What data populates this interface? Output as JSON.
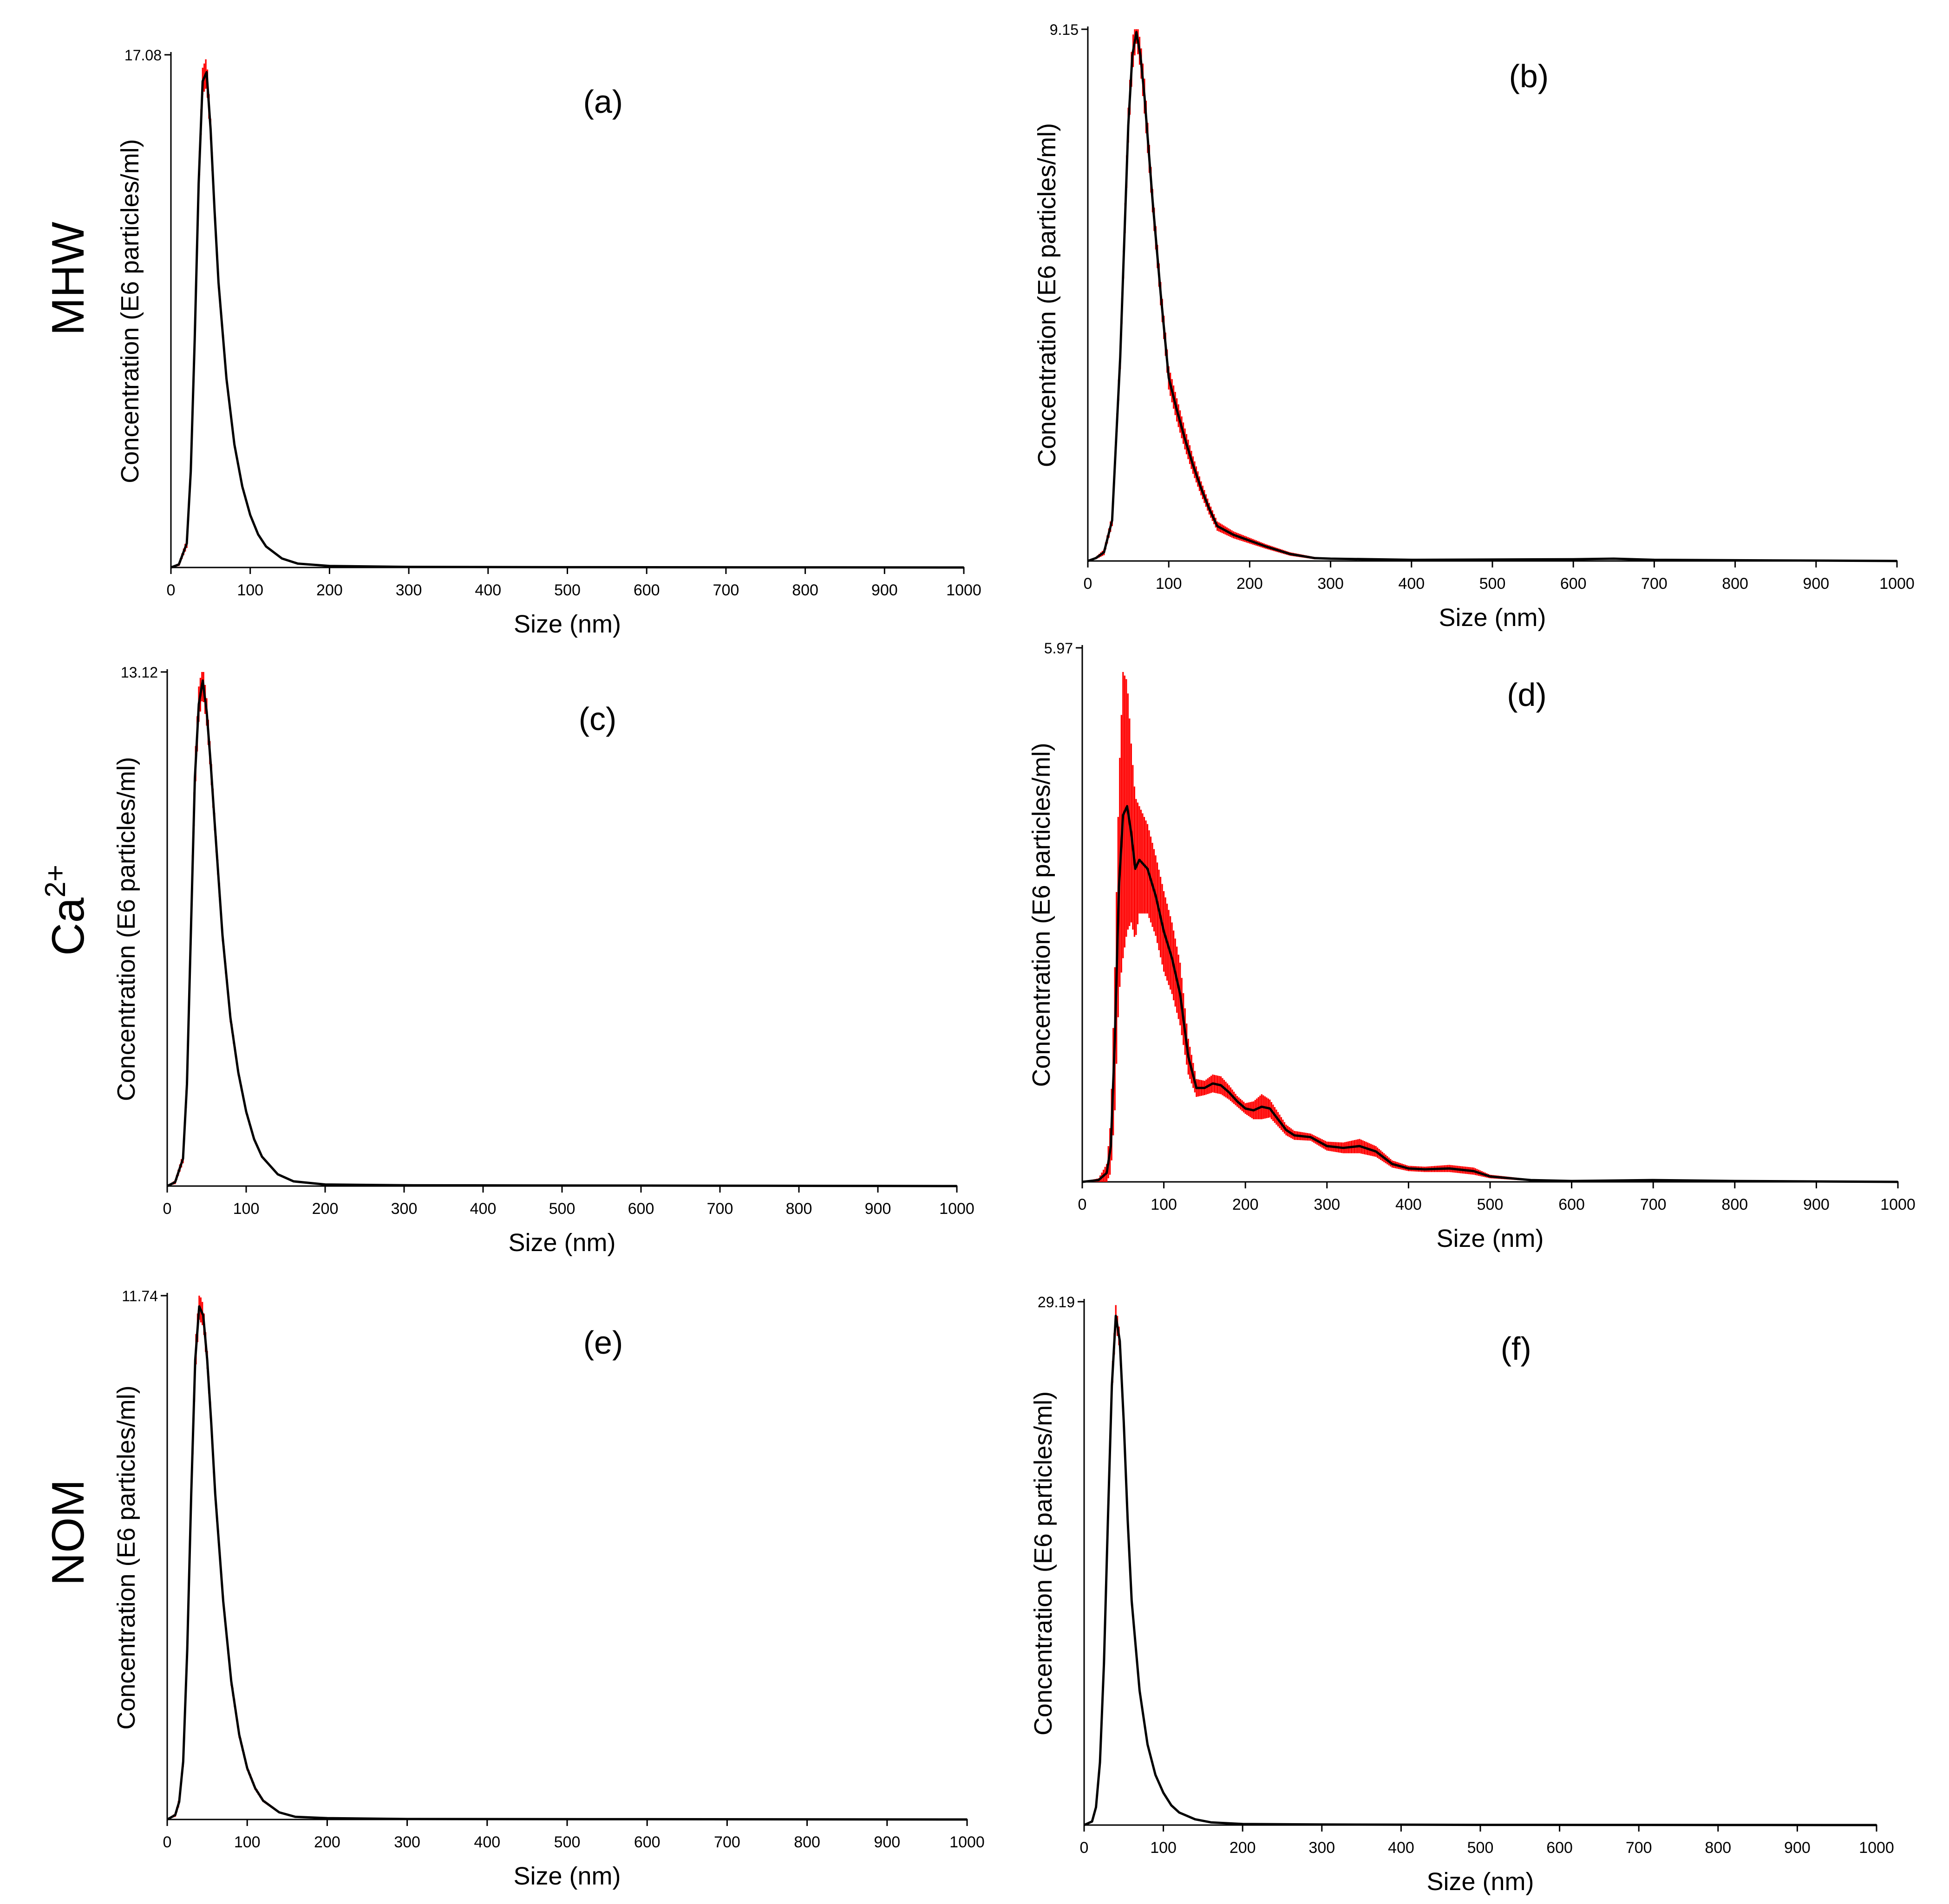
{
  "figure": {
    "row_labels": [
      {
        "text": "MHW",
        "sup": ""
      },
      {
        "text": "Ca",
        "sup": "2+"
      },
      {
        "text": "NOM",
        "sup": ""
      }
    ]
  },
  "colors": {
    "mean_line": "#000000",
    "error_band": "#ff0000",
    "axis": "#000000"
  },
  "chart_data": [
    {
      "type": "line",
      "panel": "(a)",
      "xlabel": "Size (nm)",
      "ylabel": "Concentration (E6 particles/ml)",
      "xlim": [
        0,
        1000
      ],
      "ylim": [
        0,
        17.08
      ],
      "ymax_label": "17.08",
      "xticks": [
        "0",
        "100",
        "200",
        "300",
        "400",
        "500",
        "600",
        "700",
        "800",
        "900",
        "1000"
      ],
      "series": [
        {
          "name": "mean",
          "x": [
            0,
            10,
            20,
            25,
            30,
            35,
            40,
            45,
            50,
            55,
            60,
            70,
            80,
            90,
            100,
            110,
            120,
            140,
            160,
            200,
            300,
            500,
            1000
          ],
          "y": [
            0,
            0.1,
            0.8,
            3.2,
            7.6,
            12.8,
            16.2,
            16.5,
            14.6,
            11.9,
            9.5,
            6.3,
            4.1,
            2.7,
            1.75,
            1.1,
            0.7,
            0.3,
            0.13,
            0.05,
            0.02,
            0.01,
            0
          ]
        }
      ],
      "error_width": [
        0,
        0.05,
        0.15,
        0.25,
        0.35,
        0.4,
        0.45,
        0.5,
        0.35,
        0.25,
        0.2,
        0.15,
        0.1,
        0.08,
        0.05,
        0.04,
        0.03,
        0.02,
        0.01,
        0,
        0,
        0,
        0
      ]
    },
    {
      "type": "line",
      "panel": "(b)",
      "xlabel": "Size (nm)",
      "ylabel": "Concentration (E6 particles/ml)",
      "xlim": [
        0,
        1000
      ],
      "ylim": [
        0,
        9.15
      ],
      "ymax_label": "9.15",
      "xticks": [
        "0",
        "100",
        "200",
        "300",
        "400",
        "500",
        "600",
        "700",
        "800",
        "900",
        "1000"
      ],
      "series": [
        {
          "name": "mean",
          "x": [
            0,
            10,
            20,
            30,
            40,
            50,
            55,
            60,
            65,
            70,
            80,
            90,
            100,
            110,
            120,
            130,
            140,
            150,
            160,
            180,
            200,
            220,
            250,
            280,
            300,
            400,
            600,
            650,
            700,
            1000
          ],
          "y": [
            0,
            0.05,
            0.15,
            0.7,
            3.5,
            7.5,
            8.7,
            9.1,
            8.7,
            8.0,
            6.2,
            4.6,
            3.15,
            2.6,
            2.1,
            1.65,
            1.25,
            0.9,
            0.6,
            0.45,
            0.35,
            0.25,
            0.12,
            0.05,
            0.04,
            0.02,
            0.03,
            0.04,
            0.02,
            0
          ]
        }
      ],
      "error_width": [
        0,
        0.02,
        0.05,
        0.1,
        0.2,
        0.3,
        0.3,
        0.2,
        0.25,
        0.3,
        0.2,
        0.2,
        0.2,
        0.2,
        0.18,
        0.15,
        0.12,
        0.1,
        0.08,
        0.06,
        0.05,
        0.04,
        0.03,
        0.02,
        0.01,
        0.01,
        0.01,
        0.01,
        0,
        0
      ]
    },
    {
      "type": "line",
      "panel": "(c)",
      "xlabel": "Size (nm)",
      "ylabel": "Concentration (E6 particles/ml)",
      "xlim": [
        0,
        1000
      ],
      "ylim": [
        0,
        13.12
      ],
      "ymax_label": "13.12",
      "xticks": [
        "0",
        "100",
        "200",
        "300",
        "400",
        "500",
        "600",
        "700",
        "800",
        "900",
        "1000"
      ],
      "series": [
        {
          "name": "mean",
          "x": [
            0,
            10,
            20,
            25,
            30,
            35,
            40,
            45,
            50,
            55,
            60,
            70,
            80,
            90,
            100,
            110,
            120,
            140,
            160,
            200,
            300,
            1000
          ],
          "y": [
            0,
            0.1,
            0.7,
            2.6,
            6.5,
            10.4,
            12.3,
            12.9,
            12.1,
            10.8,
            9.3,
            6.4,
            4.3,
            2.9,
            1.9,
            1.2,
            0.75,
            0.3,
            0.12,
            0.04,
            0.02,
            0
          ]
        }
      ],
      "error_width": [
        0,
        0.05,
        0.12,
        0.25,
        0.35,
        0.45,
        0.45,
        0.4,
        0.35,
        0.28,
        0.22,
        0.15,
        0.12,
        0.08,
        0.06,
        0.04,
        0.03,
        0.02,
        0.01,
        0,
        0,
        0
      ]
    },
    {
      "type": "line",
      "panel": "(d)",
      "xlabel": "Size (nm)",
      "ylabel": "Concentration (E6 particles/ml)",
      "xlim": [
        0,
        1000
      ],
      "ylim": [
        0,
        5.97
      ],
      "ymax_label": "5.97",
      "xticks": [
        "0",
        "100",
        "200",
        "300",
        "400",
        "500",
        "600",
        "700",
        "800",
        "900",
        "1000"
      ],
      "series": [
        {
          "name": "mean",
          "x": [
            0,
            20,
            30,
            35,
            40,
            45,
            50,
            55,
            60,
            65,
            70,
            80,
            90,
            100,
            110,
            120,
            130,
            140,
            150,
            160,
            170,
            180,
            190,
            200,
            210,
            220,
            230,
            240,
            250,
            260,
            280,
            300,
            320,
            340,
            360,
            380,
            400,
            420,
            450,
            480,
            500,
            550,
            600,
            700,
            800,
            1000
          ],
          "y": [
            0,
            0.02,
            0.1,
            0.4,
            1.6,
            3.3,
            4.1,
            4.2,
            3.9,
            3.5,
            3.6,
            3.5,
            3.2,
            2.8,
            2.5,
            2.1,
            1.4,
            1.05,
            1.05,
            1.1,
            1.08,
            1.0,
            0.9,
            0.82,
            0.8,
            0.84,
            0.82,
            0.7,
            0.58,
            0.52,
            0.5,
            0.4,
            0.38,
            0.4,
            0.34,
            0.2,
            0.15,
            0.14,
            0.15,
            0.12,
            0.06,
            0.02,
            0.01,
            0.02,
            0.01,
            0
          ]
        }
      ],
      "error_width": [
        0,
        0.02,
        0.1,
        0.3,
        0.8,
        1.2,
        1.6,
        1.4,
        1.0,
        0.8,
        0.6,
        0.5,
        0.45,
        0.45,
        0.4,
        0.35,
        0.2,
        0.1,
        0.08,
        0.1,
        0.1,
        0.08,
        0.06,
        0.06,
        0.1,
        0.14,
        0.1,
        0.08,
        0.06,
        0.05,
        0.04,
        0.05,
        0.06,
        0.08,
        0.06,
        0.04,
        0.03,
        0.03,
        0.04,
        0.04,
        0.02,
        0.01,
        0.01,
        0.01,
        0,
        0
      ]
    },
    {
      "type": "line",
      "panel": "(e)",
      "xlabel": "Size (nm)",
      "ylabel": "Concentration (E6 particles/ml)",
      "xlim": [
        0,
        1000
      ],
      "ylim": [
        0,
        11.74
      ],
      "ymax_label": "11.74",
      "xticks": [
        "0",
        "100",
        "200",
        "300",
        "400",
        "500",
        "600",
        "700",
        "800",
        "900",
        "1000"
      ],
      "series": [
        {
          "name": "mean",
          "x": [
            0,
            10,
            15,
            20,
            25,
            30,
            35,
            40,
            45,
            50,
            55,
            60,
            70,
            80,
            90,
            100,
            110,
            120,
            140,
            160,
            200,
            300,
            1000
          ],
          "y": [
            0,
            0.1,
            0.4,
            1.3,
            3.8,
            7.3,
            10.3,
            11.5,
            11.3,
            10.3,
            8.9,
            7.3,
            4.9,
            3.1,
            1.9,
            1.15,
            0.7,
            0.42,
            0.16,
            0.06,
            0.03,
            0.01,
            0
          ]
        }
      ],
      "error_width": [
        0,
        0.04,
        0.08,
        0.12,
        0.2,
        0.3,
        0.35,
        0.3,
        0.25,
        0.2,
        0.18,
        0.15,
        0.12,
        0.1,
        0.07,
        0.05,
        0.04,
        0.03,
        0.02,
        0.01,
        0,
        0,
        0
      ]
    },
    {
      "type": "line",
      "panel": "(f)",
      "xlabel": "Size (nm)",
      "ylabel": "Concentration (E6 particles/ml)",
      "xlim": [
        0,
        1000
      ],
      "ylim": [
        0,
        29.19
      ],
      "ymax_label": "29.19",
      "xticks": [
        "0",
        "100",
        "200",
        "300",
        "400",
        "500",
        "600",
        "700",
        "800",
        "900",
        "1000"
      ],
      "series": [
        {
          "name": "mean",
          "x": [
            0,
            10,
            15,
            20,
            25,
            30,
            35,
            40,
            45,
            50,
            55,
            60,
            70,
            80,
            90,
            100,
            110,
            120,
            140,
            160,
            200,
            300,
            500,
            1000
          ],
          "y": [
            0,
            0.2,
            1.0,
            3.5,
            9.0,
            17.0,
            24.5,
            28.4,
            27.0,
            22.5,
            17.0,
            12.5,
            7.5,
            4.5,
            2.8,
            1.8,
            1.1,
            0.7,
            0.32,
            0.15,
            0.06,
            0.03,
            0.01,
            0
          ]
        }
      ],
      "error_width": [
        0,
        0.05,
        0.1,
        0.2,
        0.35,
        0.5,
        0.6,
        0.6,
        0.5,
        0.4,
        0.3,
        0.25,
        0.15,
        0.1,
        0.08,
        0.06,
        0.04,
        0.03,
        0.02,
        0.01,
        0,
        0,
        0,
        0
      ]
    }
  ]
}
